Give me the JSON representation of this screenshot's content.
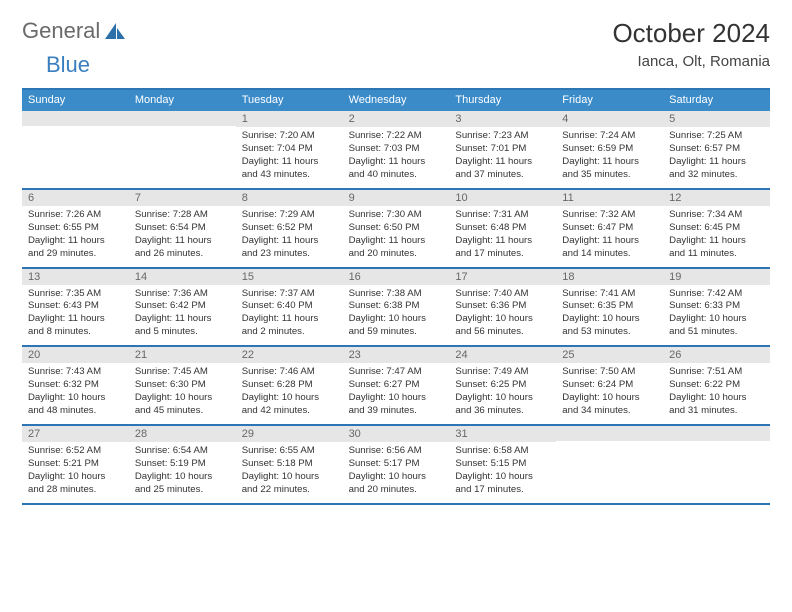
{
  "logo": {
    "text_gray": "General",
    "text_blue": "Blue"
  },
  "title": "October 2024",
  "location": "Ianca, Olt, Romania",
  "colors": {
    "header_bar": "#3b8bc9",
    "week_border": "#2d76b5",
    "daynum_bg": "#e6e6e6",
    "daynum_fg": "#676767",
    "text": "#333333",
    "logo_gray": "#6a6a6a",
    "logo_blue": "#3a7fbf"
  },
  "days_of_week": [
    "Sunday",
    "Monday",
    "Tuesday",
    "Wednesday",
    "Thursday",
    "Friday",
    "Saturday"
  ],
  "weeks": [
    [
      {
        "n": "",
        "sunrise": "",
        "sunset": "",
        "daylight1": "",
        "daylight2": ""
      },
      {
        "n": "",
        "sunrise": "",
        "sunset": "",
        "daylight1": "",
        "daylight2": ""
      },
      {
        "n": "1",
        "sunrise": "Sunrise: 7:20 AM",
        "sunset": "Sunset: 7:04 PM",
        "daylight1": "Daylight: 11 hours",
        "daylight2": "and 43 minutes."
      },
      {
        "n": "2",
        "sunrise": "Sunrise: 7:22 AM",
        "sunset": "Sunset: 7:03 PM",
        "daylight1": "Daylight: 11 hours",
        "daylight2": "and 40 minutes."
      },
      {
        "n": "3",
        "sunrise": "Sunrise: 7:23 AM",
        "sunset": "Sunset: 7:01 PM",
        "daylight1": "Daylight: 11 hours",
        "daylight2": "and 37 minutes."
      },
      {
        "n": "4",
        "sunrise": "Sunrise: 7:24 AM",
        "sunset": "Sunset: 6:59 PM",
        "daylight1": "Daylight: 11 hours",
        "daylight2": "and 35 minutes."
      },
      {
        "n": "5",
        "sunrise": "Sunrise: 7:25 AM",
        "sunset": "Sunset: 6:57 PM",
        "daylight1": "Daylight: 11 hours",
        "daylight2": "and 32 minutes."
      }
    ],
    [
      {
        "n": "6",
        "sunrise": "Sunrise: 7:26 AM",
        "sunset": "Sunset: 6:55 PM",
        "daylight1": "Daylight: 11 hours",
        "daylight2": "and 29 minutes."
      },
      {
        "n": "7",
        "sunrise": "Sunrise: 7:28 AM",
        "sunset": "Sunset: 6:54 PM",
        "daylight1": "Daylight: 11 hours",
        "daylight2": "and 26 minutes."
      },
      {
        "n": "8",
        "sunrise": "Sunrise: 7:29 AM",
        "sunset": "Sunset: 6:52 PM",
        "daylight1": "Daylight: 11 hours",
        "daylight2": "and 23 minutes."
      },
      {
        "n": "9",
        "sunrise": "Sunrise: 7:30 AM",
        "sunset": "Sunset: 6:50 PM",
        "daylight1": "Daylight: 11 hours",
        "daylight2": "and 20 minutes."
      },
      {
        "n": "10",
        "sunrise": "Sunrise: 7:31 AM",
        "sunset": "Sunset: 6:48 PM",
        "daylight1": "Daylight: 11 hours",
        "daylight2": "and 17 minutes."
      },
      {
        "n": "11",
        "sunrise": "Sunrise: 7:32 AM",
        "sunset": "Sunset: 6:47 PM",
        "daylight1": "Daylight: 11 hours",
        "daylight2": "and 14 minutes."
      },
      {
        "n": "12",
        "sunrise": "Sunrise: 7:34 AM",
        "sunset": "Sunset: 6:45 PM",
        "daylight1": "Daylight: 11 hours",
        "daylight2": "and 11 minutes."
      }
    ],
    [
      {
        "n": "13",
        "sunrise": "Sunrise: 7:35 AM",
        "sunset": "Sunset: 6:43 PM",
        "daylight1": "Daylight: 11 hours",
        "daylight2": "and 8 minutes."
      },
      {
        "n": "14",
        "sunrise": "Sunrise: 7:36 AM",
        "sunset": "Sunset: 6:42 PM",
        "daylight1": "Daylight: 11 hours",
        "daylight2": "and 5 minutes."
      },
      {
        "n": "15",
        "sunrise": "Sunrise: 7:37 AM",
        "sunset": "Sunset: 6:40 PM",
        "daylight1": "Daylight: 11 hours",
        "daylight2": "and 2 minutes."
      },
      {
        "n": "16",
        "sunrise": "Sunrise: 7:38 AM",
        "sunset": "Sunset: 6:38 PM",
        "daylight1": "Daylight: 10 hours",
        "daylight2": "and 59 minutes."
      },
      {
        "n": "17",
        "sunrise": "Sunrise: 7:40 AM",
        "sunset": "Sunset: 6:36 PM",
        "daylight1": "Daylight: 10 hours",
        "daylight2": "and 56 minutes."
      },
      {
        "n": "18",
        "sunrise": "Sunrise: 7:41 AM",
        "sunset": "Sunset: 6:35 PM",
        "daylight1": "Daylight: 10 hours",
        "daylight2": "and 53 minutes."
      },
      {
        "n": "19",
        "sunrise": "Sunrise: 7:42 AM",
        "sunset": "Sunset: 6:33 PM",
        "daylight1": "Daylight: 10 hours",
        "daylight2": "and 51 minutes."
      }
    ],
    [
      {
        "n": "20",
        "sunrise": "Sunrise: 7:43 AM",
        "sunset": "Sunset: 6:32 PM",
        "daylight1": "Daylight: 10 hours",
        "daylight2": "and 48 minutes."
      },
      {
        "n": "21",
        "sunrise": "Sunrise: 7:45 AM",
        "sunset": "Sunset: 6:30 PM",
        "daylight1": "Daylight: 10 hours",
        "daylight2": "and 45 minutes."
      },
      {
        "n": "22",
        "sunrise": "Sunrise: 7:46 AM",
        "sunset": "Sunset: 6:28 PM",
        "daylight1": "Daylight: 10 hours",
        "daylight2": "and 42 minutes."
      },
      {
        "n": "23",
        "sunrise": "Sunrise: 7:47 AM",
        "sunset": "Sunset: 6:27 PM",
        "daylight1": "Daylight: 10 hours",
        "daylight2": "and 39 minutes."
      },
      {
        "n": "24",
        "sunrise": "Sunrise: 7:49 AM",
        "sunset": "Sunset: 6:25 PM",
        "daylight1": "Daylight: 10 hours",
        "daylight2": "and 36 minutes."
      },
      {
        "n": "25",
        "sunrise": "Sunrise: 7:50 AM",
        "sunset": "Sunset: 6:24 PM",
        "daylight1": "Daylight: 10 hours",
        "daylight2": "and 34 minutes."
      },
      {
        "n": "26",
        "sunrise": "Sunrise: 7:51 AM",
        "sunset": "Sunset: 6:22 PM",
        "daylight1": "Daylight: 10 hours",
        "daylight2": "and 31 minutes."
      }
    ],
    [
      {
        "n": "27",
        "sunrise": "Sunrise: 6:52 AM",
        "sunset": "Sunset: 5:21 PM",
        "daylight1": "Daylight: 10 hours",
        "daylight2": "and 28 minutes."
      },
      {
        "n": "28",
        "sunrise": "Sunrise: 6:54 AM",
        "sunset": "Sunset: 5:19 PM",
        "daylight1": "Daylight: 10 hours",
        "daylight2": "and 25 minutes."
      },
      {
        "n": "29",
        "sunrise": "Sunrise: 6:55 AM",
        "sunset": "Sunset: 5:18 PM",
        "daylight1": "Daylight: 10 hours",
        "daylight2": "and 22 minutes."
      },
      {
        "n": "30",
        "sunrise": "Sunrise: 6:56 AM",
        "sunset": "Sunset: 5:17 PM",
        "daylight1": "Daylight: 10 hours",
        "daylight2": "and 20 minutes."
      },
      {
        "n": "31",
        "sunrise": "Sunrise: 6:58 AM",
        "sunset": "Sunset: 5:15 PM",
        "daylight1": "Daylight: 10 hours",
        "daylight2": "and 17 minutes."
      },
      {
        "n": "",
        "sunrise": "",
        "sunset": "",
        "daylight1": "",
        "daylight2": ""
      },
      {
        "n": "",
        "sunrise": "",
        "sunset": "",
        "daylight1": "",
        "daylight2": ""
      }
    ]
  ]
}
